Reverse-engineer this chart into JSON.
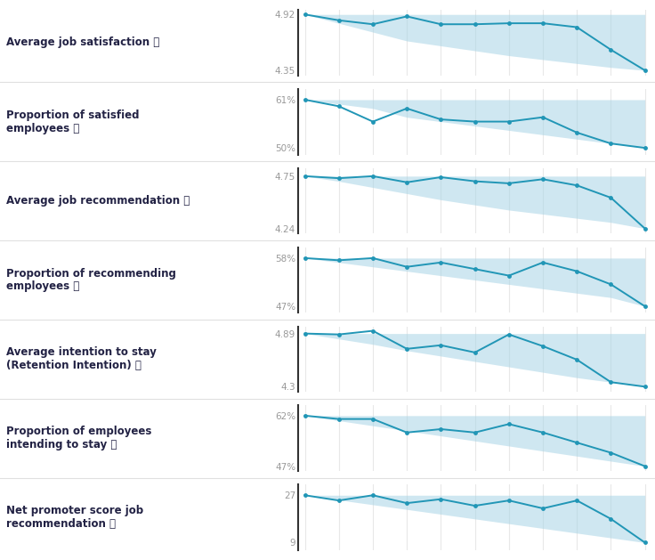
{
  "charts": [
    {
      "label": "Average job satisfaction",
      "y_top": "4.92",
      "y_bottom": "4.35",
      "ylim": [
        4.3,
        4.97
      ],
      "ytop_val": 4.92,
      "ybottom_val": 4.35,
      "line": [
        4.92,
        4.86,
        4.82,
        4.9,
        4.82,
        4.82,
        4.83,
        4.83,
        4.79,
        4.56,
        4.35
      ],
      "band_top": [
        4.92,
        4.92,
        4.92,
        4.92,
        4.92,
        4.92,
        4.92,
        4.92,
        4.92,
        4.92,
        4.92
      ],
      "band_bottom": [
        4.92,
        4.83,
        4.74,
        4.65,
        4.6,
        4.55,
        4.5,
        4.46,
        4.42,
        4.38,
        4.35
      ]
    },
    {
      "label": "Proportion of satisfied\nemployees",
      "y_top": "61%",
      "y_bottom": "50%",
      "ylim": [
        48.5,
        63.5
      ],
      "ytop_val": 61,
      "ybottom_val": 50,
      "line": [
        61,
        59.5,
        56,
        59,
        56.5,
        56,
        56,
        57,
        53.5,
        51,
        50
      ],
      "band_top": [
        61,
        61,
        61,
        61,
        61,
        61,
        61,
        61,
        61,
        61,
        61
      ],
      "band_bottom": [
        61,
        60,
        59,
        57,
        56,
        55,
        54,
        53,
        52,
        51,
        50
      ]
    },
    {
      "label": "Average job recommendation",
      "y_top": "4.75",
      "y_bottom": "4.24",
      "ylim": [
        4.19,
        4.83
      ],
      "ytop_val": 4.75,
      "ybottom_val": 4.24,
      "line": [
        4.75,
        4.73,
        4.75,
        4.69,
        4.74,
        4.7,
        4.68,
        4.72,
        4.66,
        4.54,
        4.24
      ],
      "band_top": [
        4.75,
        4.75,
        4.75,
        4.75,
        4.75,
        4.75,
        4.75,
        4.75,
        4.75,
        4.75,
        4.75
      ],
      "band_bottom": [
        4.75,
        4.7,
        4.64,
        4.58,
        4.52,
        4.47,
        4.42,
        4.38,
        4.34,
        4.3,
        4.24
      ]
    },
    {
      "label": "Proportion of recommending\nemployees",
      "y_top": "58%",
      "y_bottom": "47%",
      "ylim": [
        45.5,
        60.5
      ],
      "ytop_val": 58,
      "ybottom_val": 47,
      "line": [
        58,
        57.5,
        58,
        56,
        57,
        55.5,
        54,
        57,
        55,
        52,
        47
      ],
      "band_top": [
        58,
        58,
        58,
        58,
        58,
        58,
        58,
        58,
        58,
        58,
        58
      ],
      "band_bottom": [
        58,
        57,
        56,
        55,
        54,
        53,
        52,
        51,
        50,
        49,
        47
      ]
    },
    {
      "label": "Average intention to stay\n(Retention Intention)",
      "y_top": "4.89",
      "y_bottom": "4.3",
      "ylim": [
        4.24,
        4.97
      ],
      "ytop_val": 4.89,
      "ybottom_val": 4.3,
      "line": [
        4.89,
        4.88,
        4.92,
        4.72,
        4.76,
        4.68,
        4.88,
        4.75,
        4.6,
        4.35,
        4.3
      ],
      "band_top": [
        4.89,
        4.89,
        4.89,
        4.89,
        4.89,
        4.89,
        4.89,
        4.89,
        4.89,
        4.89,
        4.89
      ],
      "band_bottom": [
        4.89,
        4.83,
        4.77,
        4.7,
        4.64,
        4.58,
        4.52,
        4.46,
        4.4,
        4.35,
        4.3
      ]
    },
    {
      "label": "Proportion of employees\nintending to stay",
      "y_top": "62%",
      "y_bottom": "47%",
      "ylim": [
        45.5,
        65
      ],
      "ytop_val": 62,
      "ybottom_val": 47,
      "line": [
        62,
        61,
        61,
        57,
        58,
        57,
        59.5,
        57,
        54,
        51,
        47
      ],
      "band_top": [
        62,
        62,
        62,
        62,
        62,
        62,
        62,
        62,
        62,
        62,
        62
      ],
      "band_bottom": [
        62,
        60.5,
        59,
        57.5,
        56,
        54.5,
        53,
        51.5,
        50,
        48.5,
        47
      ]
    },
    {
      "label": "Net promoter score job\nrecommendation",
      "y_top": "27",
      "y_bottom": "9",
      "ylim": [
        6,
        31
      ],
      "ytop_val": 27,
      "ybottom_val": 9,
      "line": [
        27,
        25,
        27,
        24,
        25.5,
        23,
        25,
        22,
        25,
        18,
        9
      ],
      "band_top": [
        27,
        27,
        27,
        27,
        27,
        27,
        27,
        27,
        27,
        27,
        27
      ],
      "band_bottom": [
        27,
        25.2,
        23.4,
        21.6,
        19.8,
        18.0,
        16.2,
        14.4,
        12.6,
        10.8,
        9
      ]
    }
  ],
  "line_color": "#2196b6",
  "fill_color": "#a8d4e6",
  "fill_alpha": 0.55,
  "dot_color": "#2196b6",
  "dot_size": 3.5,
  "background_color": "#ffffff",
  "label_color": "#222244",
  "tick_color": "#999999",
  "grid_color": "#e8e8e8",
  "spine_color": "#333333",
  "divider_color": "#e0e0e0",
  "n_points": 11,
  "question_icon": " ⓘ"
}
